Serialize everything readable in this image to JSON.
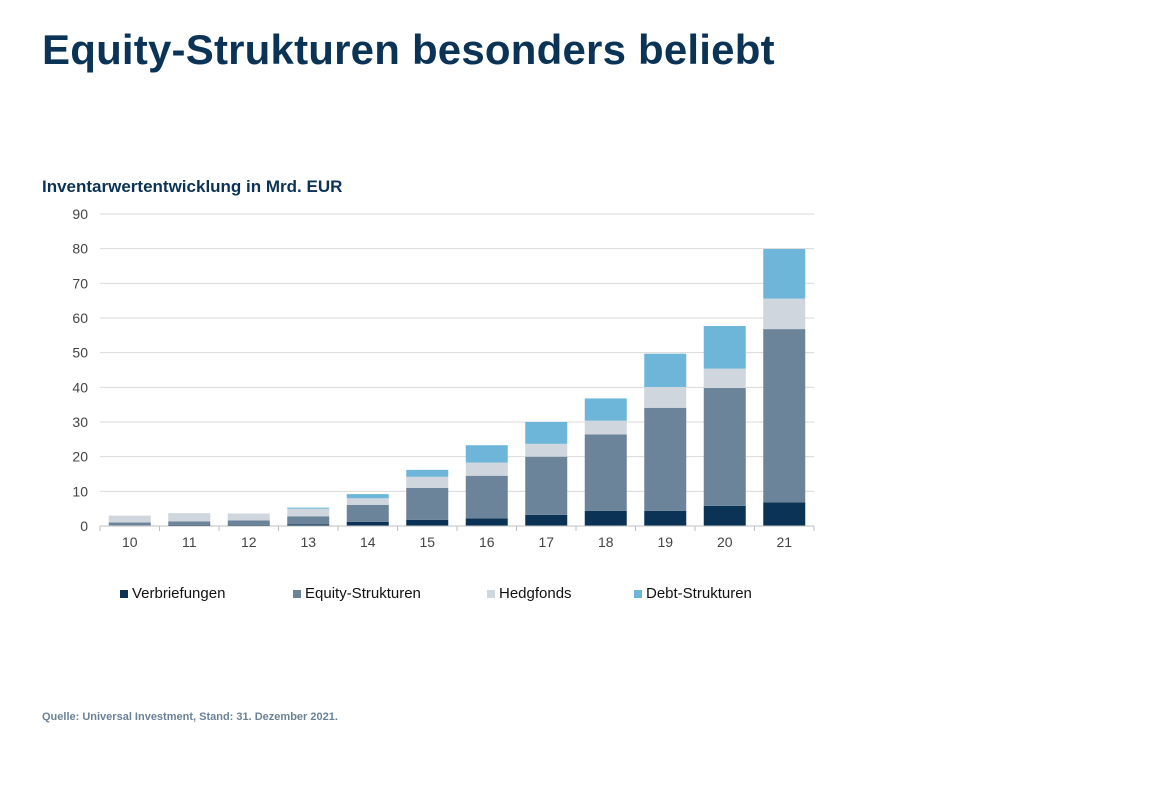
{
  "page": {
    "title": "Equity-Strukturen besonders beliebt",
    "source": "Quelle: Universal Investment, Stand: 31. Dezember 2021."
  },
  "chart_data": {
    "type": "bar",
    "stacked": true,
    "title": "Inventarwertentwicklung in Mrd. EUR",
    "xlabel": "",
    "ylabel": "",
    "ylim": [
      0,
      90
    ],
    "yticks": [
      0,
      10,
      20,
      30,
      40,
      50,
      60,
      70,
      80,
      90
    ],
    "grid": true,
    "legend_position": "bottom",
    "categories": [
      "10",
      "11",
      "12",
      "13",
      "14",
      "15",
      "16",
      "17",
      "18",
      "19",
      "20",
      "21"
    ],
    "series": [
      {
        "name": "Verbriefungen",
        "color": "#0b3356",
        "values": [
          0.2,
          0.3,
          0.3,
          0.5,
          1.2,
          1.8,
          2.2,
          3.2,
          4.4,
          4.4,
          5.8,
          6.8
        ]
      },
      {
        "name": "Equity-Strukturen",
        "color": "#6b8499",
        "values": [
          0.8,
          1.0,
          1.3,
          2.3,
          4.9,
          9.2,
          12.3,
          16.8,
          22.0,
          29.7,
          34.0,
          50.0
        ]
      },
      {
        "name": "Hedgfonds",
        "color": "#cfd6dd",
        "values": [
          2.0,
          2.4,
          2.0,
          2.2,
          1.9,
          3.2,
          3.8,
          3.7,
          4.0,
          6.0,
          5.6,
          8.8
        ]
      },
      {
        "name": "Debt-Strukturen",
        "color": "#6db6da",
        "values": [
          0.0,
          0.0,
          0.0,
          0.3,
          1.2,
          2.0,
          5.0,
          6.3,
          6.4,
          9.6,
          12.3,
          14.3
        ]
      }
    ]
  }
}
